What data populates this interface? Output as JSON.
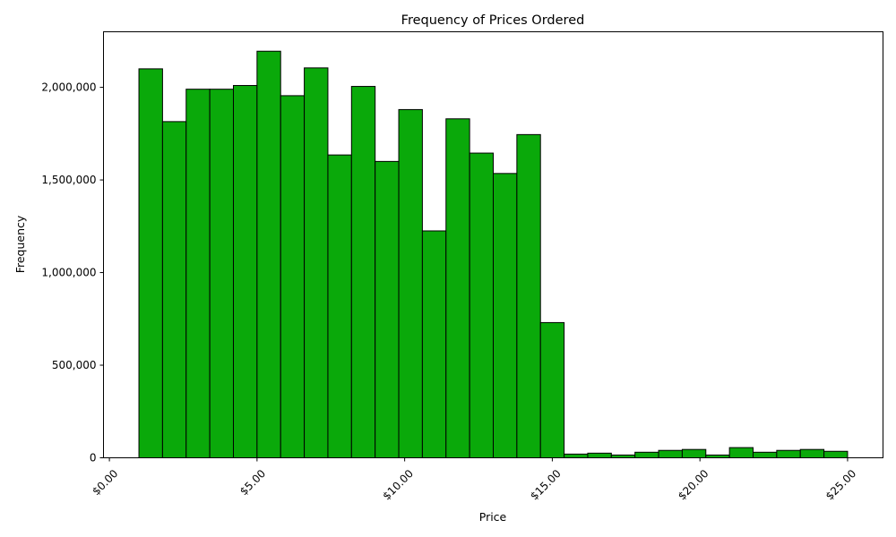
{
  "chart_data": {
    "type": "bar",
    "title": "Frequency of Prices Ordered",
    "xlabel": "Price",
    "ylabel": "Frequency",
    "xlim": [
      -0.2,
      26.2
    ],
    "ylim": [
      0,
      2300000
    ],
    "x_ticks": [
      {
        "value": 0,
        "label": "$0.00"
      },
      {
        "value": 5,
        "label": "$5.00"
      },
      {
        "value": 10,
        "label": "$10.00"
      },
      {
        "value": 15,
        "label": "$15.00"
      },
      {
        "value": 20,
        "label": "$20.00"
      },
      {
        "value": 25,
        "label": "$25.00"
      }
    ],
    "y_ticks": [
      {
        "value": 0,
        "label": "0"
      },
      {
        "value": 500000,
        "label": "500,000"
      },
      {
        "value": 1000000,
        "label": "1,000,000"
      },
      {
        "value": 1500000,
        "label": "1,500,000"
      },
      {
        "value": 2000000,
        "label": "2,000,000"
      }
    ],
    "bin_edges": [
      1.0,
      1.8,
      2.6,
      3.4,
      4.2,
      5.0,
      5.8,
      6.6,
      7.4,
      8.2,
      9.0,
      9.8,
      10.6,
      11.4,
      12.2,
      13.0,
      13.8,
      14.6,
      15.4,
      16.2,
      17.0,
      17.8,
      18.6,
      19.4,
      20.2,
      21.0,
      21.8,
      22.6,
      23.4,
      24.2,
      25.0
    ],
    "values": [
      2100000,
      1815000,
      1990000,
      1990000,
      2010000,
      2195000,
      1955000,
      2105000,
      1635000,
      2005000,
      1600000,
      1880000,
      1225000,
      1830000,
      1645000,
      1535000,
      1745000,
      730000,
      20000,
      25000,
      15000,
      30000,
      40000,
      45000,
      15000,
      55000,
      30000,
      40000,
      45000,
      35000
    ],
    "bar_color": "#0aa90a",
    "grid": false,
    "legend": "none"
  }
}
